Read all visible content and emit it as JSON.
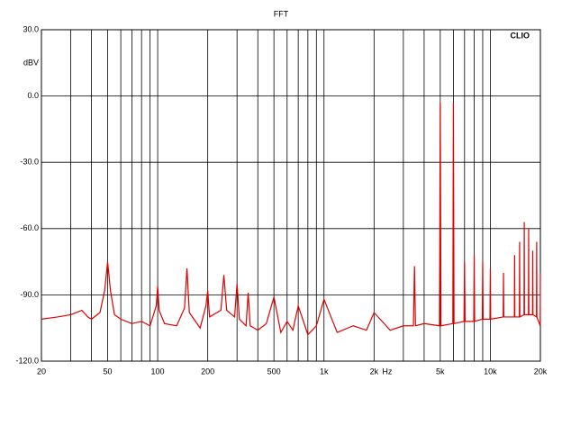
{
  "chart_data": {
    "type": "line",
    "title": "FFT",
    "y_label": "dBV",
    "x_label": "Hz",
    "watermark": "CLIO",
    "x": [
      20,
      25,
      30,
      35,
      38,
      40,
      45,
      48,
      50,
      52,
      55,
      60,
      70,
      80,
      90,
      98,
      100,
      102,
      110,
      130,
      145,
      150,
      155,
      180,
      195,
      200,
      205,
      240,
      250,
      260,
      290,
      300,
      310,
      340,
      350,
      360,
      400,
      450,
      500,
      550,
      600,
      650,
      700,
      800,
      900,
      1000,
      1200,
      1500,
      1800,
      2000,
      2500,
      3000,
      3450,
      3500,
      3550,
      4000,
      4950,
      5000,
      5050,
      5950,
      6000,
      6050,
      6950,
      7000,
      7050,
      7950,
      8000,
      8050,
      8950,
      9000,
      9050,
      9950,
      10000,
      10050,
      11950,
      12000,
      12050,
      13950,
      14000,
      14050,
      14950,
      15000,
      15050,
      15950,
      16000,
      16050,
      16950,
      17000,
      17050,
      17950,
      18000,
      18050,
      18950,
      19000,
      19050,
      19950,
      20000
    ],
    "series": [
      {
        "color": "#e00000",
        "values": [
          -101,
          -100,
          -99,
          -97,
          -100,
          -101,
          -98,
          -88,
          -75,
          -88,
          -99,
          -101,
          -103,
          -102,
          -104,
          -95,
          -86,
          -97,
          -103,
          -104,
          -96,
          -78,
          -98,
          -105,
          -95,
          -88,
          -100,
          -97,
          -81,
          -97,
          -100,
          -85,
          -101,
          -104,
          -89,
          -104,
          -106,
          -103,
          -91,
          -107,
          -102,
          -106,
          -95,
          -108,
          -104,
          -92,
          -107,
          -104,
          -106,
          -98,
          -106,
          -104,
          -104,
          -77,
          -104,
          -103,
          -104,
          -3,
          -104,
          -103,
          -3,
          -103,
          -102,
          -75,
          -102,
          -102,
          -72,
          -102,
          -101,
          -75,
          -101,
          -101,
          -78,
          -101,
          -100,
          -80,
          -100,
          -100,
          -72,
          -100,
          -100,
          -66,
          -100,
          -99,
          -57,
          -99,
          -99,
          -60,
          -99,
          -99,
          -70,
          -99,
          -100,
          -66,
          -100,
          -104,
          -80
        ]
      }
    ],
    "xscale": "log",
    "xlim": [
      20,
      20000
    ],
    "ylim": [
      -120,
      30
    ],
    "xticks": [
      20,
      50,
      100,
      200,
      500,
      {
        "value": 1000,
        "label": "1k"
      },
      {
        "value": 2000,
        "label": "2k"
      },
      {
        "value": 5000,
        "label": "5k"
      },
      {
        "value": 10000,
        "label": "10k"
      },
      {
        "value": 20000,
        "label": "20k"
      }
    ],
    "xgrid": [
      30,
      40,
      60,
      70,
      80,
      90,
      300,
      400,
      600,
      700,
      800,
      900,
      3000,
      4000,
      6000,
      7000,
      8000,
      9000
    ],
    "yticks": [
      {
        "value": 30,
        "label": "30.0"
      },
      {
        "value": 0,
        "label": "0.0"
      },
      {
        "value": -30,
        "label": "-30.0"
      },
      {
        "value": -60,
        "label": "-60.0"
      },
      {
        "value": -90,
        "label": "-90.0"
      },
      {
        "value": -120,
        "label": "-120.0"
      }
    ],
    "grid": true
  }
}
